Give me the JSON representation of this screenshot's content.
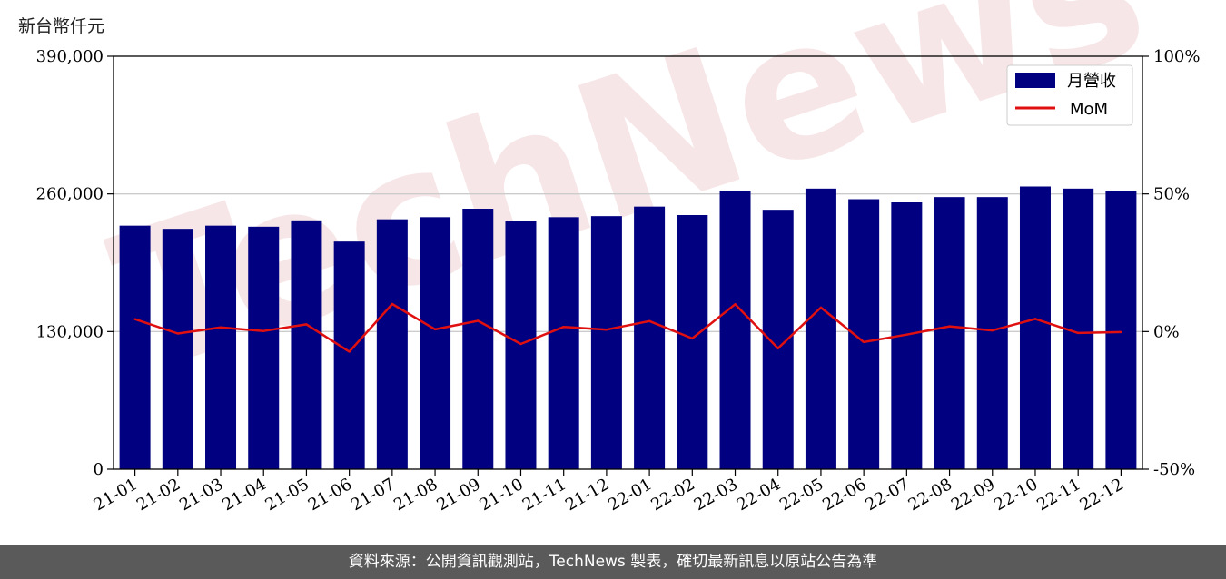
{
  "unit_label": "新台幣仟元",
  "watermark": "TechNews",
  "footer_text": "資料來源：公開資訊觀測站，TechNews 製表，確切最新訊息以原站公告為準",
  "colors": {
    "bar": "#000080",
    "line": "#e01010",
    "grid": "#cccccc",
    "footer_bg": "#5a5a5a"
  },
  "chart_data": {
    "type": "bar",
    "categories": [
      "21-01",
      "21-02",
      "21-03",
      "21-04",
      "21-05",
      "21-06",
      "21-07",
      "21-08",
      "21-09",
      "21-10",
      "21-11",
      "21-12",
      "22-01",
      "22-02",
      "22-03",
      "22-04",
      "22-05",
      "22-06",
      "22-07",
      "22-08",
      "22-09",
      "22-10",
      "22-11",
      "22-12"
    ],
    "series": [
      {
        "name": "月營收",
        "type": "bar",
        "axis": "left",
        "values": [
          230000,
          227000,
          230000,
          229000,
          235000,
          215000,
          236000,
          238000,
          246000,
          234000,
          238000,
          239000,
          248000,
          240000,
          263000,
          245000,
          265000,
          255000,
          252000,
          257000,
          257000,
          267000,
          265000,
          263000
        ]
      },
      {
        "name": "MoM",
        "type": "line",
        "axis": "right",
        "values": [
          4.5,
          -0.7,
          1.5,
          0.2,
          2.6,
          -7.3,
          10,
          0.8,
          3.9,
          -4.5,
          1.7,
          0.7,
          3.8,
          -2.5,
          9.9,
          -6.1,
          8.7,
          -3.8,
          -1.1,
          1.9,
          0.4,
          4.6,
          -0.5,
          -0.2
        ]
      }
    ],
    "y_left": {
      "ylim": [
        0,
        390000
      ],
      "ticks": [
        0,
        130000,
        260000,
        390000
      ],
      "tick_labels": [
        "0",
        "130,000",
        "260,000",
        "390,000"
      ]
    },
    "y_right": {
      "ylim": [
        -50,
        100
      ],
      "ticks": [
        -50,
        0,
        50,
        100
      ],
      "tick_labels": [
        "-50%",
        "0%",
        "50%",
        "100%"
      ]
    },
    "grid": "horizontal",
    "legend": "top-right"
  }
}
